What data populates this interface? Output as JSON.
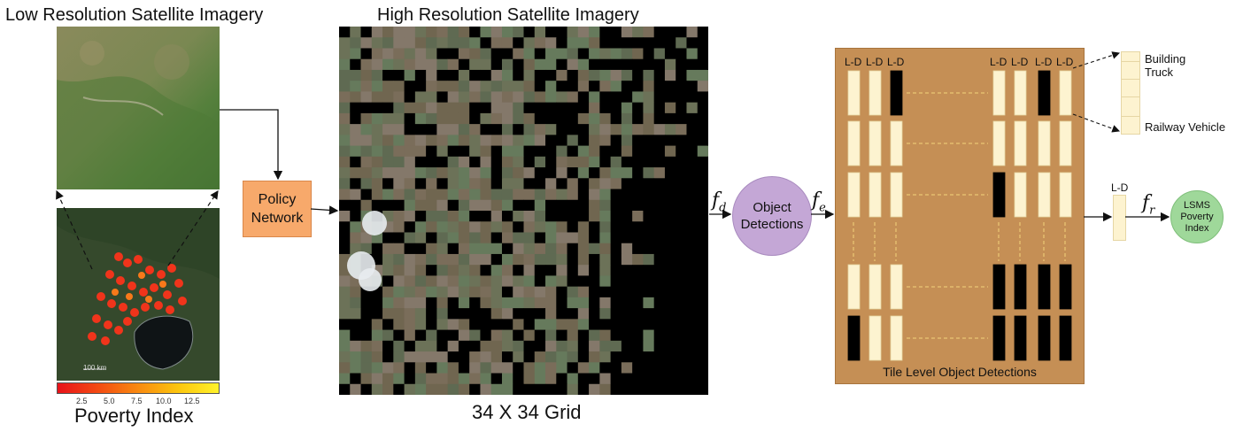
{
  "left": {
    "low_res_title": "Low Resolution Satellite Imagery",
    "scale_label": "100 km",
    "poverty_caption": "Poverty Index",
    "colorbar_ticks": [
      "2.5",
      "5.0",
      "7.5",
      "10.0",
      "12.5"
    ],
    "colorbar_colors": [
      "#e8121a",
      "#f98a10",
      "#fff22a"
    ]
  },
  "policy": {
    "line1": "Policy",
    "line2": "Network"
  },
  "center": {
    "high_res_title": "High Resolution Satellite Imagery",
    "grid_caption": "34 X 34 Grid"
  },
  "edges": {
    "fd_base": "f",
    "fd_sub": "d",
    "fe_base": "f",
    "fe_sub": "e",
    "fr_base": "f",
    "fr_sub": "r"
  },
  "object_detections": {
    "line1": "Object",
    "line2": "Detections"
  },
  "tile_panel": {
    "headers": [
      "L-D",
      "L-D",
      "L-D",
      "L-D",
      "L-D",
      "L-D",
      "L-D"
    ],
    "caption": "Tile Level Object Detections"
  },
  "legend": {
    "building": "Building",
    "truck": "Truck",
    "railway": "Railway Vehicle"
  },
  "aggregate": {
    "label": "L-D"
  },
  "lsms": {
    "line1": "LSMS",
    "line2": "Poverty",
    "line3": "Index"
  },
  "colors": {
    "policy": "#f7a96b",
    "object_detections": "#c4a7d6",
    "lsms": "#9fd89a",
    "tile_panel": "#c58f55",
    "tile_bar": "#fdf3d0"
  }
}
